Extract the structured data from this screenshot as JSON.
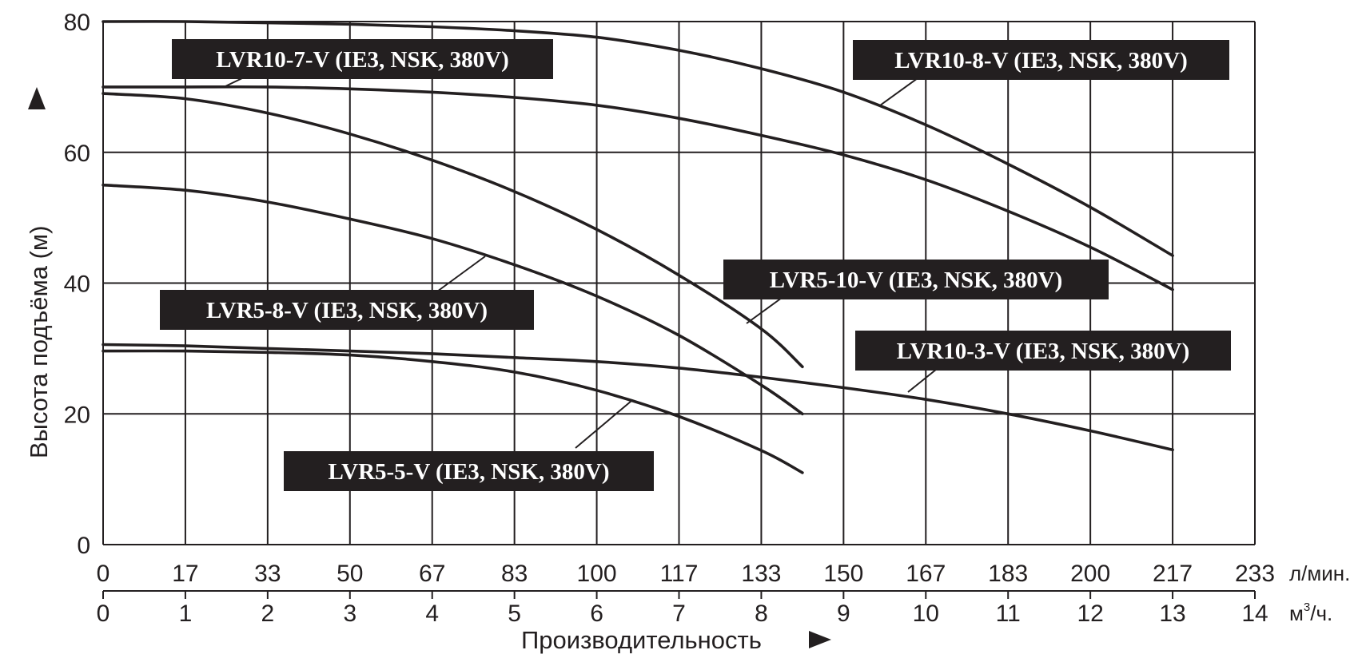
{
  "chart_data": {
    "type": "line",
    "title": "",
    "ylabel": "Высота подъёма (м)",
    "xlabel": "Производительность",
    "ylim": [
      0,
      80
    ],
    "yticks": [
      "0",
      "20",
      "40",
      "60",
      "80"
    ],
    "x_primary": {
      "unit": "л/мин.",
      "ticks": [
        "0",
        "17",
        "33",
        "50",
        "67",
        "83",
        "100",
        "117",
        "133",
        "150",
        "167",
        "183",
        "200",
        "217",
        "233"
      ]
    },
    "x_secondary": {
      "unit_base": "м",
      "unit_sup": "3",
      "unit_rest": "/ч.",
      "ticks": [
        "0",
        "1",
        "2",
        "3",
        "4",
        "5",
        "6",
        "7",
        "8",
        "9",
        "10",
        "11",
        "12",
        "13",
        "14"
      ]
    },
    "x_units": "м³/ч.",
    "xlim": [
      0,
      14
    ],
    "grid": true,
    "series": [
      {
        "name": "LVR10-8-V (IE3, NSK, 380V)",
        "x": [
          0,
          1,
          2,
          3,
          4,
          5,
          6,
          7,
          8,
          9,
          10,
          11,
          12,
          13
        ],
        "y": [
          80,
          80,
          79.8,
          79.6,
          79.2,
          78.6,
          77.6,
          75.6,
          72.8,
          69.2,
          64.2,
          58.2,
          51.6,
          44.2
        ]
      },
      {
        "name": "LVR10-7-V (IE3, NSK, 380V)",
        "x": [
          0,
          1,
          2,
          3,
          4,
          5,
          6,
          7,
          8,
          9,
          10,
          11,
          12,
          13
        ],
        "y": [
          70,
          70,
          70,
          69.7,
          69.2,
          68.4,
          67.2,
          65.2,
          62.6,
          59.6,
          55.8,
          51.0,
          45.5,
          39.0
        ]
      },
      {
        "name": "LVR5-10-V (IE3, NSK, 380V)",
        "x": [
          0,
          1,
          2,
          3,
          4,
          5,
          6,
          7,
          8,
          8.5
        ],
        "y": [
          69,
          68.2,
          66,
          62.8,
          58.8,
          54,
          48.2,
          41.2,
          33,
          27.2
        ]
      },
      {
        "name": "LVR5-8-V (IE3, NSK, 380V)",
        "x": [
          0,
          1,
          2,
          3,
          4,
          5,
          6,
          7,
          8,
          8.5
        ],
        "y": [
          55,
          54.2,
          52.4,
          49.8,
          46.8,
          42.8,
          38.0,
          32.0,
          24.4,
          20.0
        ]
      },
      {
        "name": "LVR10-3-V (IE3, NSK, 380V)",
        "x": [
          0,
          1,
          2,
          3,
          4,
          5,
          6,
          7,
          8,
          9,
          10,
          11,
          12,
          13
        ],
        "y": [
          30.6,
          30.4,
          30.0,
          29.6,
          29.2,
          28.6,
          28.0,
          27.0,
          25.6,
          24.0,
          22.2,
          20.0,
          17.4,
          14.5
        ]
      },
      {
        "name": "LVR5-5-V (IE3, NSK, 380V)",
        "x": [
          0,
          1,
          2,
          3,
          4,
          5,
          6,
          7,
          8,
          8.5
        ],
        "y": [
          29.6,
          29.6,
          29.4,
          29.0,
          28.0,
          26.4,
          23.6,
          19.6,
          14.4,
          11.0
        ]
      }
    ]
  }
}
